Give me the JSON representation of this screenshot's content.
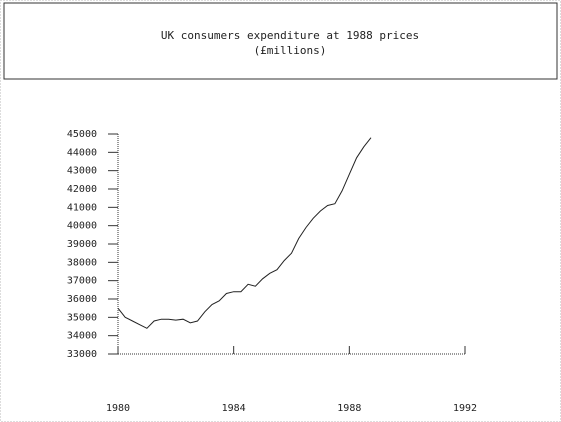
{
  "chart_data": {
    "type": "line",
    "title": "UK consumers  expenditure at 1988 prices",
    "subtitle": "(£millions)",
    "x": [
      1980,
      1980.25,
      1980.5,
      1980.75,
      1981,
      1981.25,
      1981.5,
      1981.75,
      1982,
      1982.25,
      1982.5,
      1982.75,
      1983,
      1983.25,
      1983.5,
      1983.75,
      1984,
      1984.25,
      1984.5,
      1984.75,
      1985,
      1985.25,
      1985.5,
      1985.75,
      1986,
      1986.25,
      1986.5,
      1986.75,
      1987,
      1987.25,
      1987.5,
      1987.75,
      1988,
      1988.25,
      1988.5,
      1988.75
    ],
    "series": [
      {
        "color": "#222222",
        "values": [
          35500,
          35000,
          34800,
          34600,
          34400,
          34800,
          34900,
          34900,
          34850,
          34900,
          34700,
          34800,
          35300,
          35700,
          35900,
          36300,
          36400,
          36400,
          36800,
          36700,
          37100,
          37400,
          37600,
          38100,
          38500,
          39300,
          39900,
          40400,
          40800,
          41100,
          41200,
          41900,
          42800,
          43700,
          44300,
          44800
        ]
      }
    ],
    "xlim": [
      1980,
      1992
    ],
    "xticks": [
      1980,
      1984,
      1988,
      1992
    ],
    "ylim": [
      33000,
      45000
    ],
    "yticks": [
      33000,
      34000,
      35000,
      36000,
      37000,
      38000,
      39000,
      40000,
      41000,
      42000,
      43000,
      44000,
      45000
    ]
  }
}
